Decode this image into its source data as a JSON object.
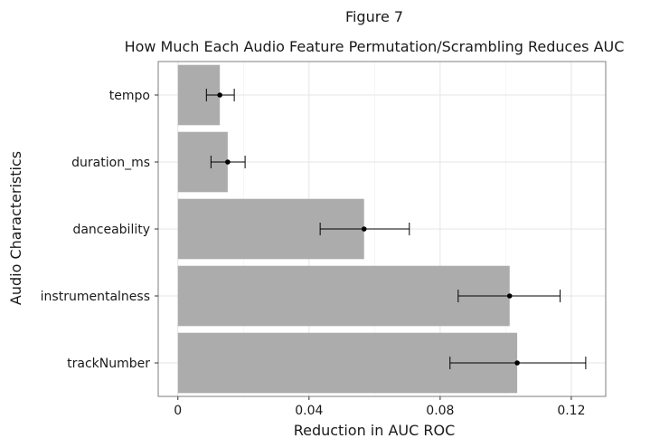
{
  "figure": {
    "label": "Figure 7",
    "title": "How Much Each Audio Feature Permutation/Scrambling Reduces AUC"
  },
  "chart_data": {
    "type": "bar",
    "orientation": "horizontal",
    "title": "How Much Each Audio Feature Permutation/Scrambling Reduces AUC",
    "xlabel": "Reduction in AUC ROC",
    "ylabel": "Audio Characteristics",
    "xlim": [
      -0.006,
      0.1305
    ],
    "x_ticks": [
      0,
      0.04,
      0.08,
      0.12
    ],
    "x_tick_labels": [
      "0",
      "0.04",
      "0.08",
      "0.12"
    ],
    "grid": true,
    "categories": [
      "tempo",
      "duration_ms",
      "danceability",
      "instrumentalness",
      "trackNumber"
    ],
    "values": [
      0.0128,
      0.0152,
      0.0568,
      0.1012,
      0.1035
    ],
    "error_low": [
      0.0087,
      0.0101,
      0.0434,
      0.0855,
      0.083
    ],
    "error_high": [
      0.0172,
      0.0205,
      0.0706,
      0.1166,
      0.1244
    ],
    "colors": {
      "bar": "#acacac",
      "point": "#000000",
      "grid": "#e5e5e5",
      "panel_border": "#7f7f7f"
    }
  }
}
